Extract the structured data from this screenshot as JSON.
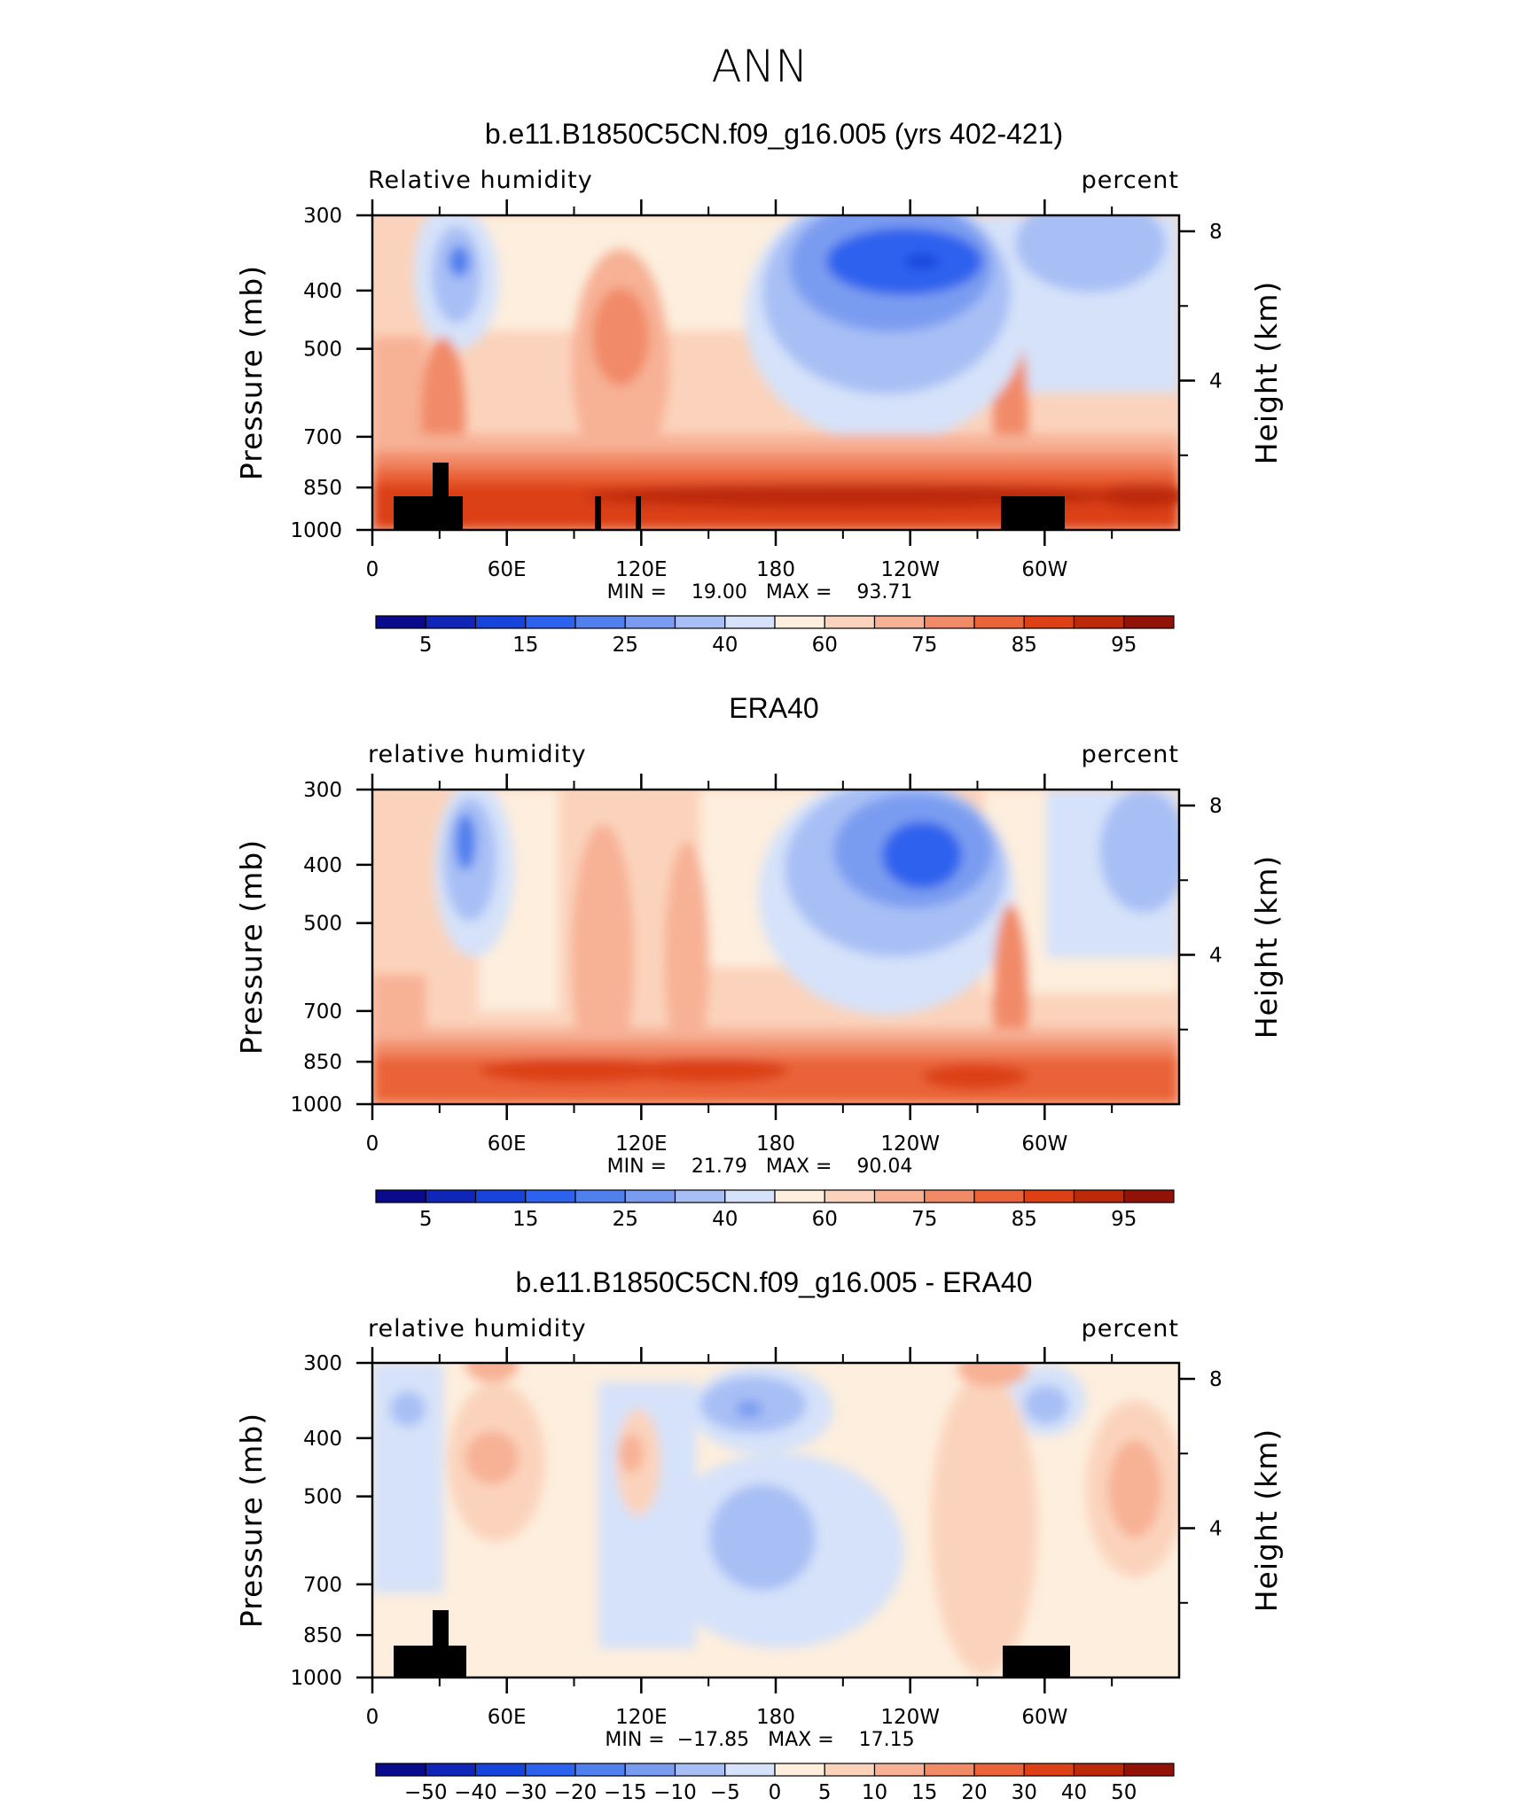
{
  "figure": {
    "season": "ANN"
  },
  "colors": {
    "abs_scale": [
      "#0a0a8c",
      "#0f26b8",
      "#1745dc",
      "#2d62ee",
      "#507fee",
      "#7a9cf0",
      "#a8bff5",
      "#d5e2f9",
      "#fdeedd",
      "#fbd3bc",
      "#f7b195",
      "#f18a67",
      "#ea6339",
      "#dc4014",
      "#bd2a0a",
      "#931208"
    ],
    "diff_scale": [
      "#0a0a8c",
      "#0f26b8",
      "#1745dc",
      "#2d62ee",
      "#507fee",
      "#7a9cf0",
      "#a8bff5",
      "#d5e2f9",
      "#fdeedd",
      "#fbd3bc",
      "#f7b195",
      "#f18a67",
      "#ea6339",
      "#dc4014",
      "#bd2a0a",
      "#931208"
    ],
    "topography": "#000000"
  },
  "panels": [
    {
      "title": "b.e11.B1850C5CN.f09_g16.005 (yrs 402-421)",
      "left_label": "Relative humidity",
      "right_label": "percent",
      "min_max": "MIN =    19.00   MAX =    93.71",
      "palette": "abs_scale",
      "colorbar_labels": [
        "5",
        "15",
        "25",
        "40",
        "60",
        "75",
        "85",
        "95"
      ],
      "topography": true
    },
    {
      "title": "ERA40",
      "left_label": "relative humidity",
      "right_label": "percent",
      "min_max": "MIN =    21.79   MAX =    90.04",
      "palette": "abs_scale",
      "colorbar_labels": [
        "5",
        "15",
        "25",
        "40",
        "60",
        "75",
        "85",
        "95"
      ],
      "topography": false
    },
    {
      "title": "b.e11.B1850C5CN.f09_g16.005 - ERA40",
      "left_label": "relative humidity",
      "right_label": "percent",
      "min_max": "MIN =  −17.85   MAX =    17.15",
      "palette": "diff_scale",
      "colorbar_labels": [
        "−50",
        "−40",
        "−30",
        "−20",
        "−15",
        "−10",
        "−5",
        "0",
        "5",
        "10",
        "15",
        "20",
        "30",
        "40",
        "50"
      ],
      "topography": true
    }
  ],
  "chart_data": {
    "type": "heatmap",
    "description_axis_x": "longitude",
    "x_ticks": {
      "values": [
        0,
        60,
        120,
        180,
        240,
        300
      ],
      "labels": [
        "0",
        "60E",
        "120E",
        "180",
        "120W",
        "60W"
      ]
    },
    "y_axis": {
      "label": "Pressure (mb)",
      "ticks": [
        300,
        400,
        500,
        700,
        850,
        1000
      ],
      "range": [
        1000,
        300
      ],
      "scale": "log"
    },
    "y2_axis": {
      "label": "Height (km)",
      "ticks": [
        8,
        4
      ],
      "tick_labels": [
        "8",
        "4"
      ]
    },
    "panels": [
      {
        "name": "model",
        "min": 19.0,
        "max": 93.71
      },
      {
        "name": "ERA40",
        "min": 21.79,
        "max": 90.04
      },
      {
        "name": "model - ERA40",
        "min": -17.85,
        "max": 17.15
      }
    ]
  }
}
